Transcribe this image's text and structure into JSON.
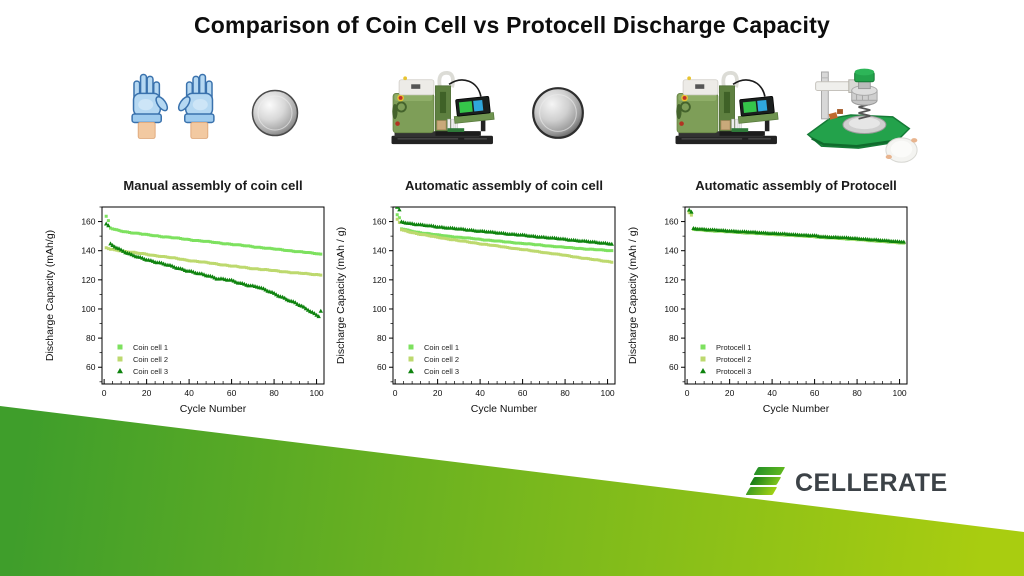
{
  "title": "Comparison of Coin Cell vs Protocell Discharge Capacity",
  "logo": {
    "text": "CELLERATE",
    "accent_dark": "#167d16",
    "accent_light": "#a2d214",
    "text_color": "#3c4247"
  },
  "footer_band": {
    "color_left": "#3f9e2b",
    "color_right": "#a9cd10"
  },
  "illustrations": {
    "panel1": [
      "nitrile-gloves",
      "coin-cell-photo"
    ],
    "panel2": [
      "cell-assembly-machine",
      "coin-cell-photo"
    ],
    "panel3": [
      "cell-assembly-machine",
      "protocell-press-jig",
      "protocell-pouch"
    ]
  },
  "chart_data": [
    {
      "type": "scatter",
      "title": "Manual assembly of coin cell",
      "xlabel": "Cycle Number",
      "ylabel": "Discharge Capacity (mAh/g)",
      "xlim": [
        -1,
        103.5
      ],
      "ylim": [
        48.5,
        170
      ],
      "xticks": [
        0,
        20,
        40,
        60,
        80,
        100
      ],
      "yticks": [
        60,
        80,
        100,
        120,
        140,
        160
      ],
      "grid": false,
      "legend_position": "lower-left",
      "series": [
        {
          "name": "Coin cell 1",
          "marker": "square",
          "color": "#7de15f",
          "noise": 0.25,
          "points": [
            [
              1,
              163.5
            ],
            [
              2,
              160.5
            ],
            [
              3,
              155.5
            ],
            [
              5,
              154.5
            ],
            [
              10,
              153
            ],
            [
              20,
              151
            ],
            [
              30,
              149.3
            ],
            [
              40,
              147.6
            ],
            [
              50,
              146
            ],
            [
              60,
              144.4
            ],
            [
              70,
              142.8
            ],
            [
              80,
              141.2
            ],
            [
              90,
              139.6
            ],
            [
              100,
              138
            ],
            [
              102,
              137.6
            ]
          ]
        },
        {
          "name": "Coin cell 2",
          "marker": "square",
          "color": "#bdd96e",
          "noise": 0.25,
          "points": [
            [
              1,
              142
            ],
            [
              3,
              141
            ],
            [
              10,
              139.5
            ],
            [
              20,
              137.5
            ],
            [
              30,
              135.5
            ],
            [
              37,
              134
            ],
            [
              40,
              133.3
            ],
            [
              50,
              131.5
            ],
            [
              60,
              129.5
            ],
            [
              70,
              127.8
            ],
            [
              80,
              126.3
            ],
            [
              90,
              124.8
            ],
            [
              100,
              123.6
            ],
            [
              102,
              123.4
            ]
          ]
        },
        {
          "name": "Coin cell 3",
          "marker": "triangle",
          "color": "#0e830e",
          "noise": 0.45,
          "points": [
            [
              1,
              158.5
            ],
            [
              2,
              157
            ],
            [
              3,
              144.5
            ],
            [
              5,
              143
            ],
            [
              8,
              140.5
            ],
            [
              12,
              137.5
            ],
            [
              16,
              135.5
            ],
            [
              20,
              134
            ],
            [
              25,
              132
            ],
            [
              30,
              130
            ],
            [
              35,
              128
            ],
            [
              40,
              126
            ],
            [
              45,
              124
            ],
            [
              50,
              122.5
            ],
            [
              53,
              121
            ],
            [
              57,
              120.3
            ],
            [
              60,
              119.3
            ],
            [
              63,
              118
            ],
            [
              66,
              117
            ],
            [
              69,
              116
            ],
            [
              72,
              115.3
            ],
            [
              75,
              113.5
            ],
            [
              78,
              111.8
            ],
            [
              81,
              110
            ],
            [
              84,
              108
            ],
            [
              87,
              106
            ],
            [
              90,
              104
            ],
            [
              93,
              101.8
            ],
            [
              96,
              99.5
            ],
            [
              99,
              96.8
            ],
            [
              101,
              95.2
            ],
            [
              102,
              98.7
            ]
          ]
        }
      ]
    },
    {
      "type": "scatter",
      "title": "Automatic assembly of coin cell",
      "xlabel": "Cycle Number",
      "ylabel": "Discharge Capacity (mAh / g)",
      "xlim": [
        -1,
        103.5
      ],
      "ylim": [
        48.5,
        170
      ],
      "xticks": [
        0,
        20,
        40,
        60,
        80,
        100
      ],
      "yticks": [
        60,
        80,
        100,
        120,
        140,
        160
      ],
      "grid": false,
      "legend_position": "lower-left",
      "series": [
        {
          "name": "Coin cell 1",
          "marker": "square",
          "color": "#7de15f",
          "noise": 0.2,
          "points": [
            [
              1,
              164.5
            ],
            [
              2,
              162.5
            ],
            [
              3,
              155
            ],
            [
              10,
              152.8
            ],
            [
              20,
              150.8
            ],
            [
              30,
              149.2
            ],
            [
              40,
              147.8
            ],
            [
              50,
              146.3
            ],
            [
              60,
              145
            ],
            [
              70,
              143.6
            ],
            [
              80,
              142.3
            ],
            [
              90,
              141.2
            ],
            [
              100,
              140.2
            ],
            [
              102,
              140
            ]
          ]
        },
        {
          "name": "Coin cell 2",
          "marker": "square",
          "color": "#bdd96e",
          "noise": 0.2,
          "points": [
            [
              1,
              161.5
            ],
            [
              2,
              159.5
            ],
            [
              3,
              154.3
            ],
            [
              10,
              151.8
            ],
            [
              20,
              149.2
            ],
            [
              30,
              146.9
            ],
            [
              40,
              144.8
            ],
            [
              50,
              142.8
            ],
            [
              60,
              140.8
            ],
            [
              70,
              138.8
            ],
            [
              80,
              136.8
            ],
            [
              90,
              134.6
            ],
            [
              100,
              132.6
            ],
            [
              102,
              132.2
            ]
          ]
        },
        {
          "name": "Coin cell 3",
          "marker": "triangle",
          "color": "#0e830e",
          "noise": 0.25,
          "points": [
            [
              1,
              170
            ],
            [
              2,
              168
            ],
            [
              3,
              159.7
            ],
            [
              10,
              158
            ],
            [
              20,
              156.4
            ],
            [
              30,
              154.9
            ],
            [
              40,
              153.4
            ],
            [
              50,
              152
            ],
            [
              60,
              150.6
            ],
            [
              70,
              149.2
            ],
            [
              80,
              147.8
            ],
            [
              90,
              146.3
            ],
            [
              100,
              145
            ],
            [
              102,
              144.6
            ]
          ]
        }
      ]
    },
    {
      "type": "scatter",
      "title": "Automatic assembly of Protocell",
      "xlabel": "Cycle Number",
      "ylabel": "Discharge Capacity (mAh / g)",
      "xlim": [
        -1,
        103.5
      ],
      "ylim": [
        48.5,
        170
      ],
      "xticks": [
        0,
        20,
        40,
        60,
        80,
        100
      ],
      "yticks": [
        60,
        80,
        100,
        120,
        140,
        160
      ],
      "grid": false,
      "legend_position": "lower-left",
      "series": [
        {
          "name": "Protocell 1",
          "marker": "square",
          "color": "#7de15f",
          "noise": 0.15,
          "points": [
            [
              1,
              167
            ],
            [
              2,
              165.5
            ],
            [
              3,
              154.6
            ],
            [
              10,
              153.8
            ],
            [
              20,
              152.9
            ],
            [
              30,
              152
            ],
            [
              40,
              151.2
            ],
            [
              50,
              150.4
            ],
            [
              60,
              149.6
            ],
            [
              63,
              149
            ],
            [
              70,
              148.6
            ],
            [
              80,
              147.6
            ],
            [
              90,
              146.5
            ],
            [
              100,
              145.4
            ],
            [
              102,
              145.2
            ]
          ]
        },
        {
          "name": "Protocell 2",
          "marker": "square",
          "color": "#bdd96e",
          "noise": 0.15,
          "points": [
            [
              1,
              166
            ],
            [
              2,
              164.5
            ],
            [
              3,
              154.9
            ],
            [
              10,
              154.1
            ],
            [
              20,
              153.2
            ],
            [
              30,
              152.3
            ],
            [
              40,
              151.5
            ],
            [
              50,
              150.7
            ],
            [
              60,
              149.9
            ],
            [
              63,
              149.3
            ],
            [
              70,
              148.9
            ],
            [
              80,
              147.9
            ],
            [
              90,
              146.8
            ],
            [
              100,
              145.7
            ],
            [
              102,
              145.5
            ]
          ]
        },
        {
          "name": "Protocell 3",
          "marker": "triangle",
          "color": "#0e830e",
          "noise": 0.18,
          "points": [
            [
              1,
              168
            ],
            [
              2,
              166.5
            ],
            [
              3,
              155.2
            ],
            [
              10,
              154.4
            ],
            [
              20,
              153.5
            ],
            [
              30,
              152.7
            ],
            [
              40,
              151.9
            ],
            [
              50,
              151.1
            ],
            [
              60,
              150.3
            ],
            [
              63,
              149.6
            ],
            [
              70,
              149.2
            ],
            [
              80,
              148.3
            ],
            [
              90,
              147.2
            ],
            [
              100,
              146.2
            ],
            [
              102,
              146
            ]
          ]
        }
      ]
    }
  ]
}
